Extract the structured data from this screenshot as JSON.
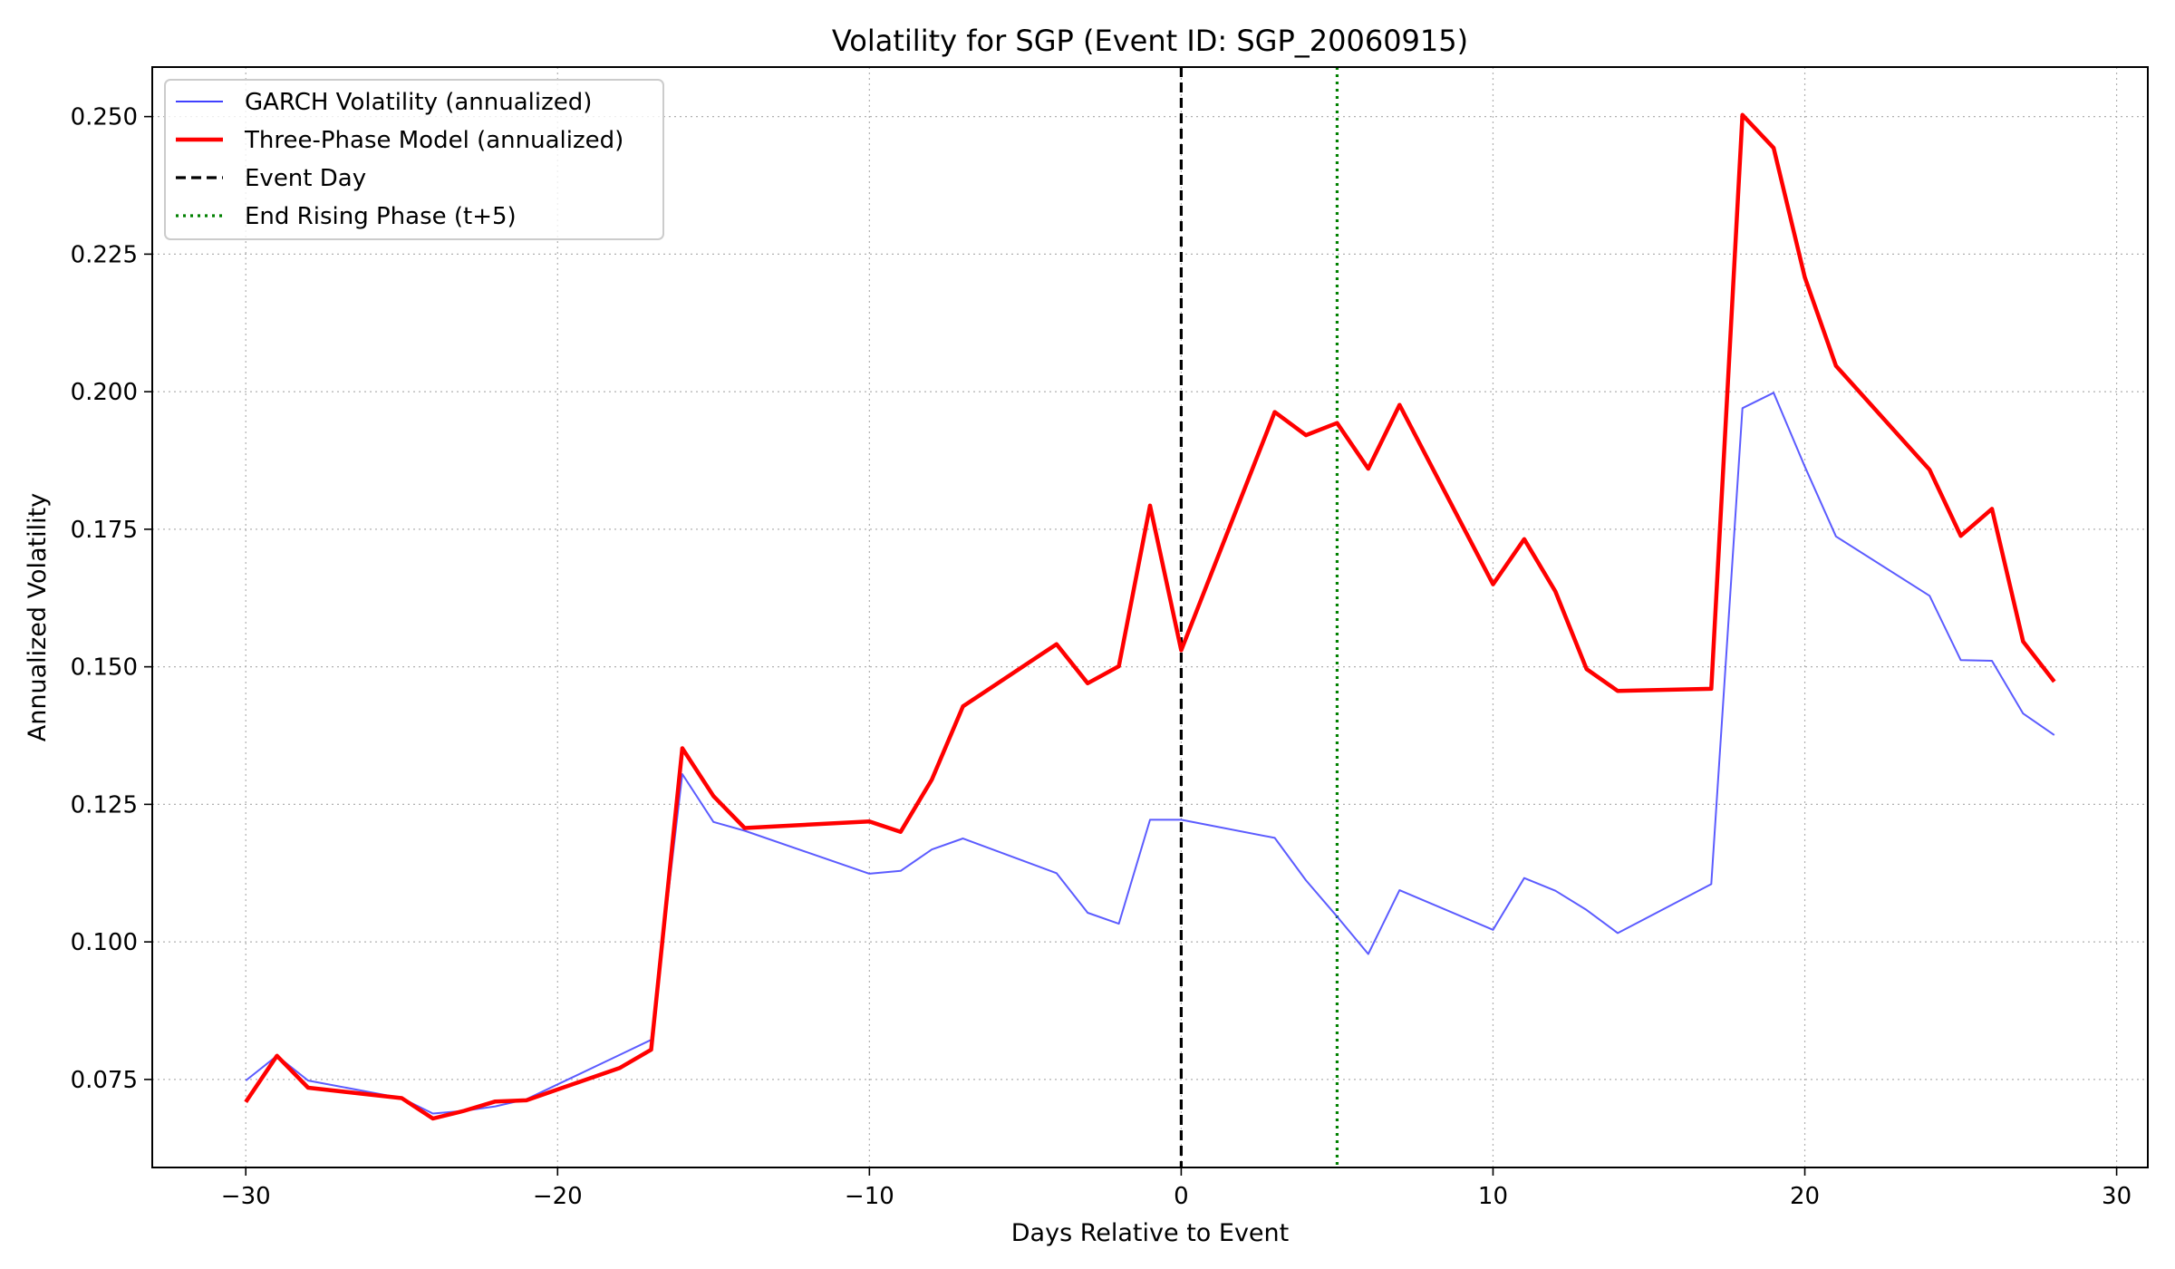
{
  "chart_data": {
    "type": "line",
    "title": "Volatility for SGP (Event ID: SGP_20060915)",
    "xlabel": "Days Relative to Event",
    "ylabel": "Annualized Volatility",
    "xlim": [
      -33,
      31
    ],
    "ylim": [
      0.059,
      0.259
    ],
    "xticks": [
      -30,
      -20,
      -10,
      0,
      10,
      20,
      30
    ],
    "xtick_labels": [
      "−30",
      "−20",
      "−10",
      "0",
      "10",
      "20",
      "30"
    ],
    "yticks": [
      0.075,
      0.1,
      0.125,
      0.15,
      0.175,
      0.2,
      0.225,
      0.25
    ],
    "ytick_labels": [
      "0.075",
      "0.100",
      "0.125",
      "0.150",
      "0.175",
      "0.200",
      "0.225",
      "0.250"
    ],
    "grid": true,
    "legend_position": "top-left",
    "series": [
      {
        "name": "GARCH Volatility (annualized)",
        "color": "#4040ff",
        "style": "solid-thin",
        "x": [
          -30,
          -29,
          -28,
          -25,
          -24,
          -23,
          -22,
          -21,
          -18,
          -17,
          -16,
          -15,
          -14,
          -10,
          -9,
          -8,
          -7,
          -4,
          -3,
          -2,
          -1,
          0,
          3,
          4,
          5,
          6,
          7,
          10,
          11,
          12,
          13,
          14,
          17,
          18,
          19,
          20,
          21,
          24,
          25,
          26,
          27,
          28
        ],
        "y": [
          0.0748,
          0.0793,
          0.0748,
          0.0716,
          0.0688,
          0.0693,
          0.0701,
          0.0714,
          0.0795,
          0.0822,
          0.1305,
          0.1218,
          0.1202,
          0.1124,
          0.1129,
          0.1168,
          0.1188,
          0.1125,
          0.1053,
          0.1033,
          0.1222,
          0.1222,
          0.1189,
          0.1112,
          0.1046,
          0.0978,
          0.1094,
          0.1022,
          0.1116,
          0.1093,
          0.1058,
          0.1016,
          0.1105,
          0.197,
          0.1998,
          0.1864,
          0.1737,
          0.1629,
          0.1512,
          0.1511,
          0.1415,
          0.1376
        ]
      },
      {
        "name": "Three-Phase Model (annualized)",
        "color": "#ff0000",
        "style": "solid-thick",
        "x": [
          -30,
          -29,
          -28,
          -25,
          -24,
          -23,
          -22,
          -21,
          -18,
          -17,
          -16,
          -15,
          -14,
          -10,
          -9,
          -8,
          -7,
          -4,
          -3,
          -2,
          -1,
          0,
          3,
          4,
          5,
          6,
          7,
          10,
          11,
          12,
          13,
          14,
          17,
          18,
          19,
          20,
          21,
          24,
          25,
          26,
          27,
          28
        ],
        "y": [
          0.0709,
          0.0793,
          0.0735,
          0.0716,
          0.0679,
          0.0693,
          0.071,
          0.0712,
          0.0771,
          0.0804,
          0.1352,
          0.1265,
          0.1207,
          0.1219,
          0.12,
          0.1295,
          0.1428,
          0.1541,
          0.147,
          0.1501,
          0.1793,
          0.153,
          0.1963,
          0.1921,
          0.1943,
          0.186,
          0.1976,
          0.165,
          0.1732,
          0.1637,
          0.1496,
          0.1456,
          0.146,
          0.2503,
          0.2443,
          0.2208,
          0.2047,
          0.1858,
          0.1738,
          0.1787,
          0.1546,
          0.1473
        ]
      }
    ],
    "reference_lines": [
      {
        "name": "Event Day",
        "x": 0,
        "color": "#000000",
        "style": "dashed"
      },
      {
        "name": "End Rising Phase (t+5)",
        "x": 5,
        "color": "#008000",
        "style": "dotted"
      }
    ]
  }
}
